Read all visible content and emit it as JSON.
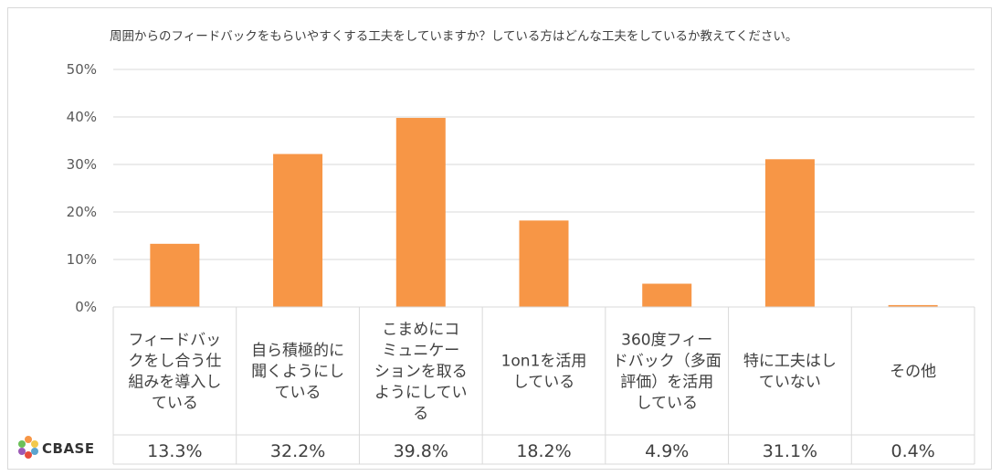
{
  "chart_data": {
    "type": "bar",
    "title": "周囲からのフィードバックをもらいやすくする工夫をしていますか？している方はどんな工夫をしているか教えてください。",
    "categories": [
      [
        "フィードバッ",
        "クをし合う仕",
        "組みを導入し",
        "ている"
      ],
      [
        "自ら積極的に",
        "聞くようにし",
        "ている"
      ],
      [
        "こまめにコ",
        "ミュニケー",
        "ションを取る",
        "ようにしてい",
        "る"
      ],
      [
        "1on1を活用",
        "している"
      ],
      [
        "360度フィー",
        "ドバック（多面",
        "評価）を活用",
        "している"
      ],
      [
        "特に工夫はし",
        "ていない"
      ],
      [
        "その他"
      ]
    ],
    "values": [
      13.3,
      32.2,
      39.8,
      18.2,
      4.9,
      31.1,
      0.4
    ],
    "value_labels": [
      "13.3%",
      "32.2%",
      "39.8%",
      "18.2%",
      "4.9%",
      "31.1%",
      "0.4%"
    ],
    "yticks": [
      "0%",
      "10%",
      "20%",
      "30%",
      "40%",
      "50%"
    ],
    "ylim": [
      0,
      50
    ],
    "bar_color": "#F79646",
    "grid_color": "#d9d9d9"
  },
  "logo": {
    "text": "CBASE"
  }
}
